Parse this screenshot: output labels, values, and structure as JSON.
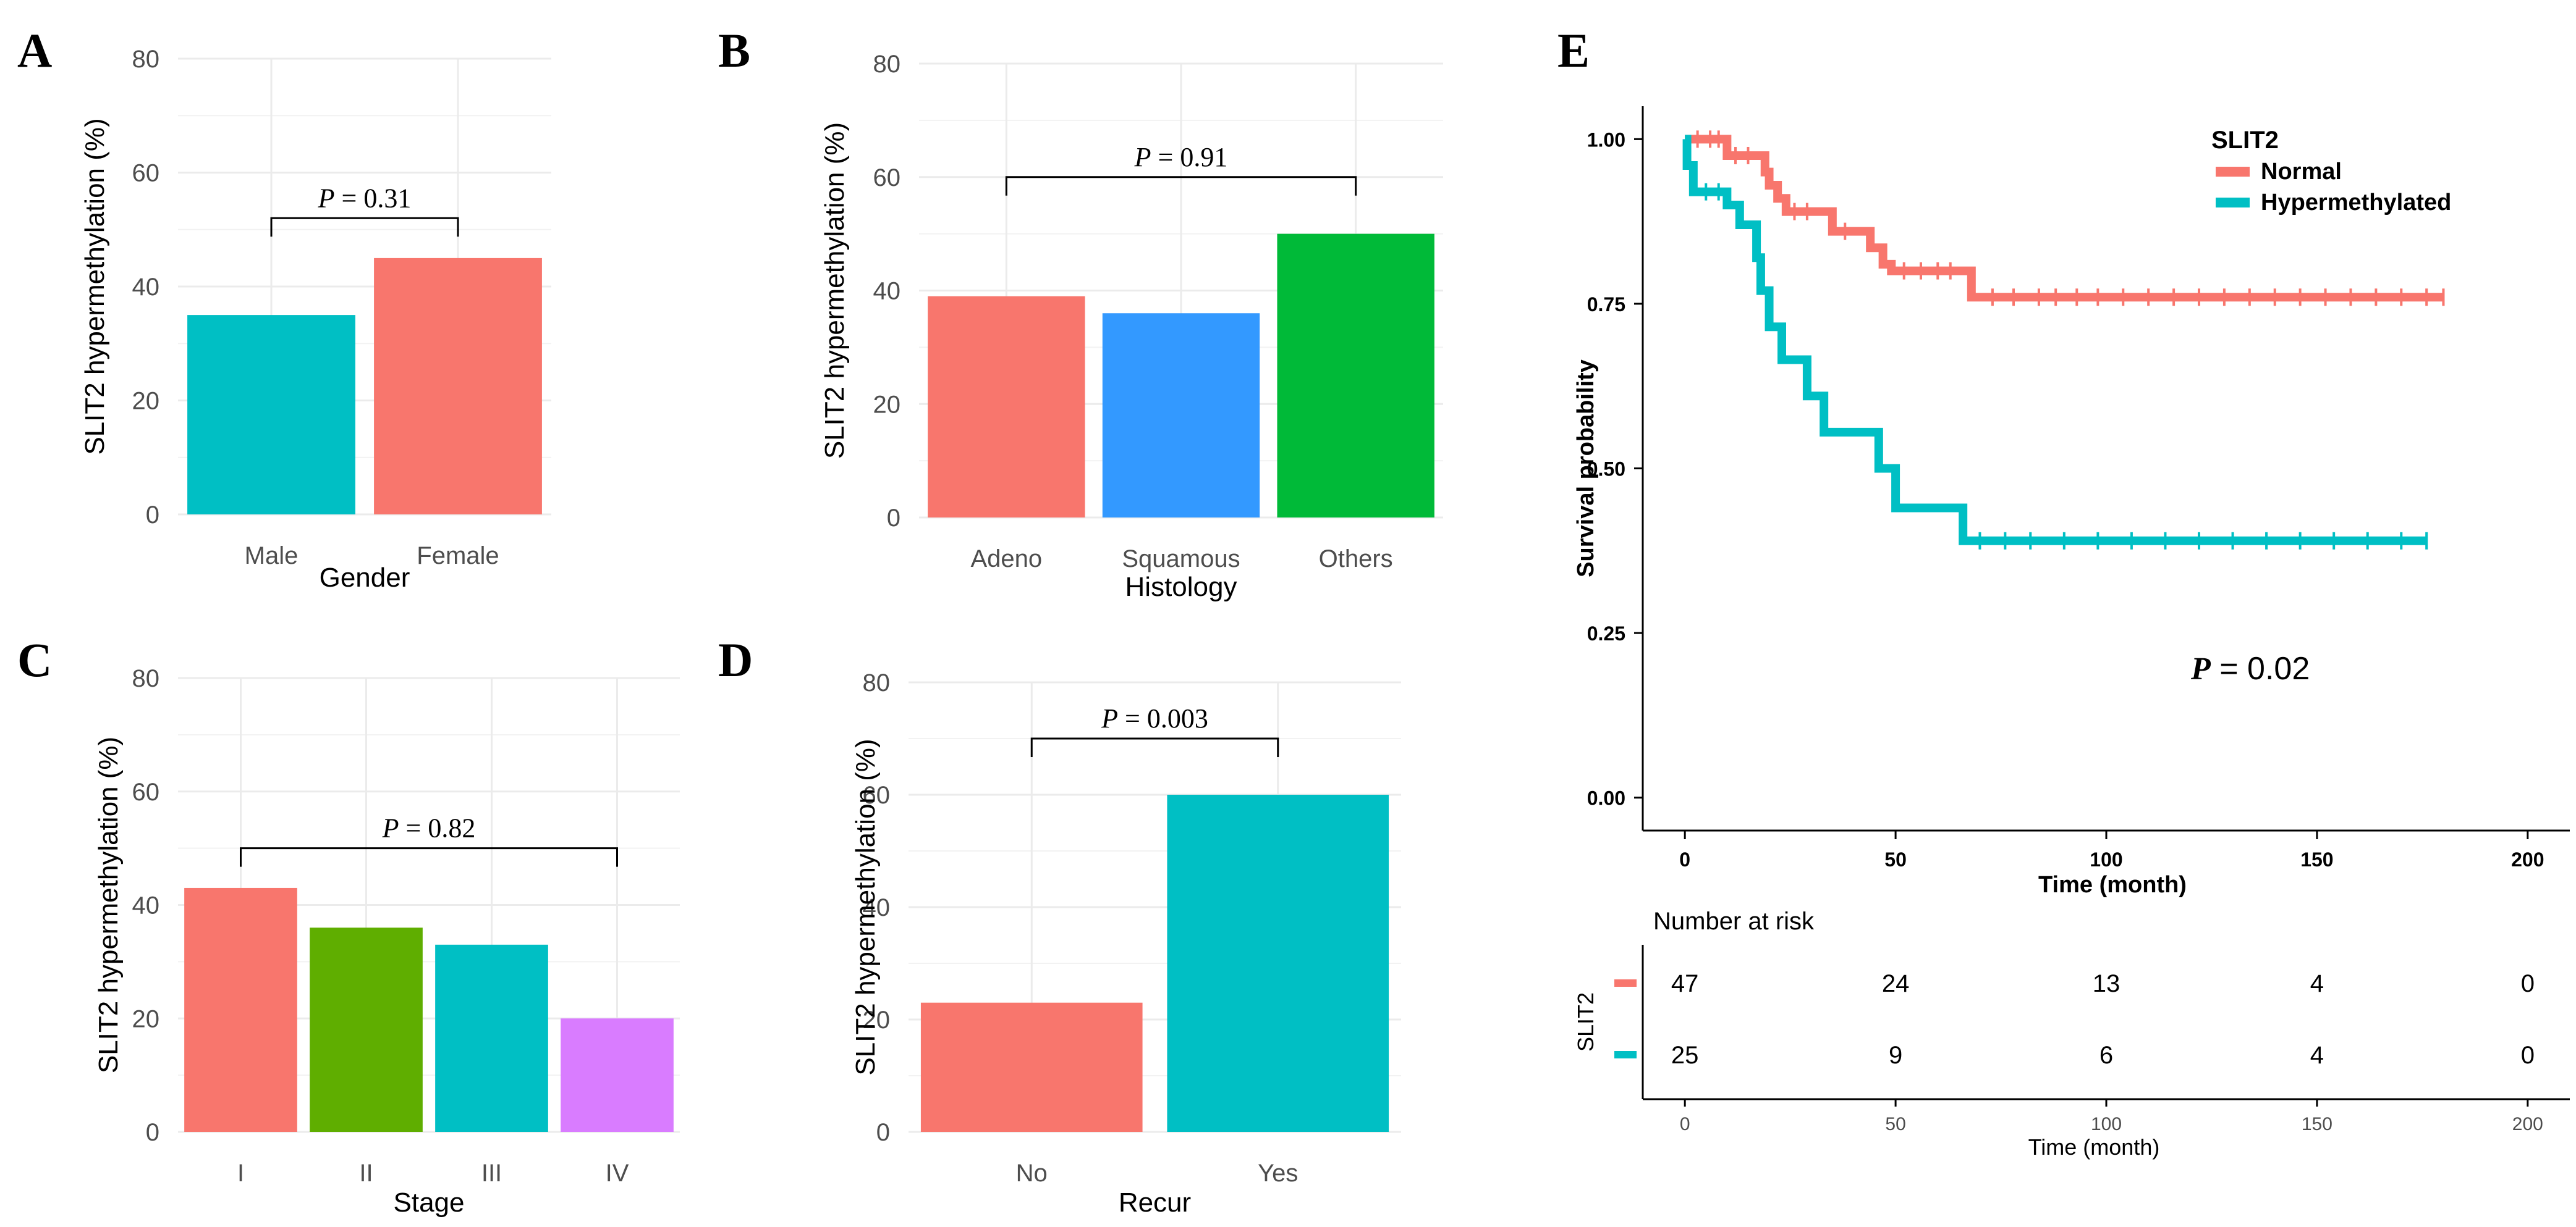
{
  "chart_data": [
    {
      "id": "A",
      "type": "bar",
      "panel_label": "A",
      "xlabel": "Gender",
      "ylabel": "SLIT2 hypermethylation (%)",
      "ylim": [
        0,
        80
      ],
      "yticks": [
        0,
        20,
        40,
        60,
        80
      ],
      "categories": [
        "Male",
        "Female"
      ],
      "values": [
        35,
        45
      ],
      "colors": [
        "#00BFC4",
        "#F8766D"
      ],
      "annotation": {
        "p_label": "P",
        "p_value": "= 0.31",
        "from": 0,
        "to": 1,
        "level": 52
      }
    },
    {
      "id": "B",
      "type": "bar",
      "panel_label": "B",
      "xlabel": "Histology",
      "ylabel": "SLIT2 hypermethylation (%)",
      "ylim": [
        0,
        80
      ],
      "yticks": [
        0,
        20,
        40,
        60,
        80
      ],
      "categories": [
        "Adeno",
        "Squamous",
        "Others"
      ],
      "values": [
        39,
        36,
        50
      ],
      "colors": [
        "#F8766D",
        "#3399FF",
        "#00BA38"
      ],
      "annotation": {
        "p_label": "P",
        "p_value": "= 0.91",
        "from": 0,
        "to": 2,
        "level": 60
      }
    },
    {
      "id": "C",
      "type": "bar",
      "panel_label": "C",
      "xlabel": "Stage",
      "ylabel": "SLIT2 hypermethylation (%)",
      "ylim": [
        0,
        80
      ],
      "yticks": [
        0,
        20,
        40,
        60,
        80
      ],
      "categories": [
        "I",
        "II",
        "III",
        "IV"
      ],
      "values": [
        43,
        36,
        33,
        20
      ],
      "colors": [
        "#F8766D",
        "#5FAE00",
        "#00BFC4",
        "#D97CFF"
      ],
      "annotation": {
        "p_label": "P",
        "p_value": "= 0.82",
        "from": 0,
        "to": 3,
        "level": 50
      }
    },
    {
      "id": "D",
      "type": "bar",
      "panel_label": "D",
      "xlabel": "Recur",
      "ylabel": "SLIT2 hypermethylation (%)",
      "ylim": [
        0,
        80
      ],
      "yticks": [
        0,
        20,
        40,
        60,
        80
      ],
      "categories": [
        "No",
        "Yes"
      ],
      "values": [
        23,
        60
      ],
      "colors": [
        "#F8766D",
        "#00BFC4"
      ],
      "annotation": {
        "p_label": "P",
        "p_value": "= 0.003",
        "from": 0,
        "to": 1,
        "level": 70
      }
    },
    {
      "id": "E",
      "type": "line",
      "subtype": "kaplan-meier",
      "panel_label": "E",
      "xlabel": "Time (month)",
      "ylabel": "Survival probability",
      "xlim": [
        -10,
        210
      ],
      "ylim": [
        -0.05,
        1.05
      ],
      "xticks": [
        0,
        50,
        100,
        150,
        200
      ],
      "yticks": [
        "0.00",
        "0.25",
        "0.50",
        "0.75",
        "1.00"
      ],
      "legend_title": "SLIT2",
      "legend_position": "top-right",
      "p_annotation": {
        "p_label": "P",
        "p_value": "= 0.02"
      },
      "series": [
        {
          "name": "Normal",
          "color": "#F8766D",
          "steps": [
            [
              0,
              1.0
            ],
            [
              10,
              0.975
            ],
            [
              19,
              0.95
            ],
            [
              20,
              0.93
            ],
            [
              22,
              0.91
            ],
            [
              24,
              0.89
            ],
            [
              35,
              0.86
            ],
            [
              44,
              0.835
            ],
            [
              47,
              0.81
            ],
            [
              49,
              0.8
            ],
            [
              68,
              0.76
            ],
            [
              180,
              0.76
            ]
          ],
          "censor_times": [
            3,
            6,
            8,
            12,
            15,
            26,
            29,
            38,
            52,
            56,
            60,
            63,
            73,
            78,
            84,
            88,
            93,
            98,
            104,
            110,
            116,
            122,
            128,
            134,
            140,
            146,
            152,
            158,
            164,
            170,
            176,
            180
          ]
        },
        {
          "name": "Hypermethylated",
          "color": "#00BFC4",
          "steps": [
            [
              0,
              1.0
            ],
            [
              0.5,
              0.96
            ],
            [
              2,
              0.92
            ],
            [
              10,
              0.9
            ],
            [
              13,
              0.87
            ],
            [
              17,
              0.82
            ],
            [
              18,
              0.77
            ],
            [
              20,
              0.715
            ],
            [
              23,
              0.665
            ],
            [
              29,
              0.61
            ],
            [
              33,
              0.555
            ],
            [
              46,
              0.5
            ],
            [
              50,
              0.44
            ],
            [
              66,
              0.39
            ],
            [
              176,
              0.39
            ]
          ],
          "censor_times": [
            5,
            8,
            70,
            76,
            82,
            90,
            98,
            106,
            114,
            122,
            130,
            138,
            146,
            154,
            162,
            170,
            176
          ]
        }
      ],
      "risk_table": {
        "title": "Number at risk",
        "ylabel": "SLIT2",
        "xlabel": "Time (month)",
        "xticks": [
          0,
          50,
          100,
          150,
          200
        ],
        "rows": [
          {
            "name": "Normal",
            "color": "#F8766D",
            "counts": [
              47,
              24,
              13,
              4,
              0
            ]
          },
          {
            "name": "Hypermethylated",
            "color": "#00BFC4",
            "counts": [
              25,
              9,
              6,
              4,
              0
            ]
          }
        ]
      }
    }
  ]
}
